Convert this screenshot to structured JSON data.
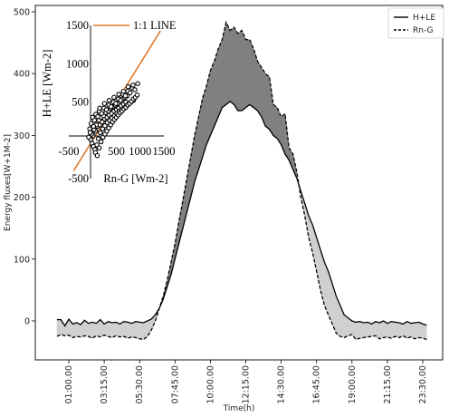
{
  "chart_data": [
    {
      "type": "line",
      "title": "",
      "xlabel": "Time(h)",
      "ylabel": "Energy fluxes[W+1M-2]",
      "ylim": [
        -60,
        500
      ],
      "yticks": [
        0,
        100,
        200,
        300,
        400,
        500
      ],
      "xlim": [
        0,
        24
      ],
      "xticks": [
        {
          "label": "01:00.00",
          "hours": 1.0
        },
        {
          "label": "03:15.00",
          "hours": 3.25
        },
        {
          "label": "05:30.00",
          "hours": 5.5
        },
        {
          "label": "07:45.00",
          "hours": 7.75
        },
        {
          "label": "10:00.00",
          "hours": 10.0
        },
        {
          "label": "12:15.00",
          "hours": 12.25
        },
        {
          "label": "14:30.00",
          "hours": 14.5
        },
        {
          "label": "16:45.00",
          "hours": 16.75
        },
        {
          "label": "19:00.00",
          "hours": 19.0
        },
        {
          "label": "21:15.00",
          "hours": 21.25
        },
        {
          "label": "23:30.00",
          "hours": 23.5
        }
      ],
      "legend_position": "top-right",
      "fill_colors": {
        "positive": "#808080",
        "negative": "#d0d0d0"
      },
      "series": [
        {
          "name": "H+LE",
          "style": "solid",
          "x": [
            0.25,
            0.5,
            0.75,
            1.0,
            1.25,
            1.5,
            1.75,
            2.0,
            2.25,
            2.5,
            2.75,
            3.0,
            3.25,
            3.5,
            3.75,
            4.0,
            4.25,
            4.5,
            4.75,
            5.0,
            5.25,
            5.5,
            5.75,
            6.0,
            6.25,
            6.5,
            6.75,
            7.0,
            7.25,
            7.5,
            7.75,
            8.0,
            8.25,
            8.5,
            8.75,
            9.0,
            9.25,
            9.5,
            9.75,
            10.0,
            10.25,
            10.5,
            10.75,
            11.0,
            11.25,
            11.5,
            11.75,
            12.0,
            12.25,
            12.5,
            12.75,
            13.0,
            13.25,
            13.5,
            13.75,
            14.0,
            14.25,
            14.5,
            14.75,
            15.0,
            15.25,
            15.5,
            15.75,
            16.0,
            16.25,
            16.5,
            16.75,
            17.0,
            17.25,
            17.5,
            17.75,
            18.0,
            18.25,
            18.5,
            18.75,
            19.0,
            19.25,
            19.5,
            19.75,
            20.0,
            20.25,
            20.5,
            20.75,
            21.0,
            21.25,
            21.5,
            21.75,
            22.0,
            22.25,
            22.5,
            22.75,
            23.0,
            23.25,
            23.5,
            23.75
          ],
          "y": [
            2,
            2,
            -8,
            3,
            -5,
            -3,
            -6,
            1,
            -4,
            -2,
            -4,
            2,
            -5,
            -1,
            -3,
            -2,
            -5,
            -1,
            -2,
            -4,
            -1,
            -2,
            -3,
            0,
            3,
            10,
            20,
            35,
            55,
            75,
            100,
            125,
            150,
            175,
            200,
            225,
            245,
            265,
            285,
            300,
            315,
            330,
            345,
            350,
            355,
            350,
            340,
            340,
            345,
            350,
            345,
            340,
            330,
            315,
            310,
            300,
            295,
            285,
            270,
            260,
            245,
            230,
            210,
            190,
            170,
            155,
            135,
            115,
            95,
            80,
            60,
            40,
            25,
            10,
            5,
            0,
            -2,
            -1,
            -3,
            -2,
            -5,
            -1,
            -3,
            0,
            -4,
            -1,
            -2,
            -3,
            -5,
            -1,
            -4,
            -3,
            -2,
            -5,
            -7
          ]
        },
        {
          "name": "Rn-G",
          "style": "dashed",
          "x": [
            0.25,
            0.5,
            0.75,
            1.0,
            1.25,
            1.5,
            1.75,
            2.0,
            2.25,
            2.5,
            2.75,
            3.0,
            3.25,
            3.5,
            3.75,
            4.0,
            4.25,
            4.5,
            4.75,
            5.0,
            5.25,
            5.5,
            5.75,
            6.0,
            6.25,
            6.5,
            6.75,
            7.0,
            7.25,
            7.5,
            7.75,
            8.0,
            8.25,
            8.5,
            8.75,
            9.0,
            9.25,
            9.5,
            9.75,
            10.0,
            10.25,
            10.5,
            10.75,
            11.0,
            11.25,
            11.5,
            11.75,
            12.0,
            12.25,
            12.5,
            12.75,
            13.0,
            13.25,
            13.5,
            13.75,
            14.0,
            14.25,
            14.5,
            14.75,
            15.0,
            15.25,
            15.5,
            15.75,
            16.0,
            16.25,
            16.5,
            16.75,
            17.0,
            17.25,
            17.5,
            17.75,
            18.0,
            18.25,
            18.5,
            18.75,
            19.0,
            19.25,
            19.5,
            19.75,
            20.0,
            20.25,
            20.5,
            20.75,
            21.0,
            21.25,
            21.5,
            21.75,
            22.0,
            22.25,
            22.5,
            22.75,
            23.0,
            23.25,
            23.5,
            23.75
          ],
          "y": [
            -25,
            -22,
            -24,
            -23,
            -27,
            -25,
            -26,
            -24,
            -25,
            -28,
            -24,
            -26,
            -23,
            -25,
            -27,
            -24,
            -26,
            -25,
            -28,
            -26,
            -27,
            -29,
            -30,
            -25,
            -15,
            0,
            20,
            40,
            65,
            95,
            125,
            160,
            195,
            230,
            265,
            300,
            330,
            360,
            380,
            405,
            420,
            440,
            455,
            483,
            470,
            475,
            465,
            470,
            455,
            455,
            440,
            420,
            410,
            400,
            395,
            350,
            345,
            330,
            335,
            280,
            270,
            240,
            200,
            170,
            135,
            110,
            80,
            50,
            25,
            10,
            -5,
            -20,
            -25,
            -27,
            -24,
            -22,
            -30,
            -28,
            -27,
            -26,
            -25,
            -24,
            -29,
            -27,
            -26,
            -28,
            -25,
            -27,
            -24,
            -28,
            -26,
            -29,
            -27,
            -28,
            -30
          ]
        }
      ]
    },
    {
      "type": "scatter",
      "title": "",
      "xlabel": "Rn-G [Wm-2]",
      "ylabel": "H+LE [Wm-2]",
      "xlim": [
        -500,
        1500
      ],
      "ylim": [
        -500,
        1500
      ],
      "xtick_labels": [
        "-500",
        "500",
        "1000",
        "1500"
      ],
      "ytick_labels": [
        "-500",
        "500",
        "1000",
        "1500"
      ],
      "xtick_values": [
        -500,
        500,
        1000,
        1500
      ],
      "ytick_values": [
        -500,
        500,
        1000,
        1500
      ],
      "line_label": "1:1 LINE",
      "line_color": "#e07b2f",
      "marker": "open-circle",
      "points": [
        [
          -40,
          10
        ],
        [
          10,
          60
        ],
        [
          60,
          120
        ],
        [
          100,
          180
        ],
        [
          150,
          200
        ],
        [
          200,
          240
        ],
        [
          250,
          280
        ],
        [
          300,
          300
        ],
        [
          350,
          330
        ],
        [
          400,
          350
        ],
        [
          450,
          380
        ],
        [
          500,
          400
        ],
        [
          550,
          420
        ],
        [
          600,
          450
        ],
        [
          650,
          470
        ],
        [
          700,
          500
        ],
        [
          -20,
          80
        ],
        [
          30,
          140
        ],
        [
          80,
          200
        ],
        [
          130,
          260
        ],
        [
          180,
          300
        ],
        [
          230,
          320
        ],
        [
          280,
          360
        ],
        [
          330,
          380
        ],
        [
          380,
          420
        ],
        [
          430,
          440
        ],
        [
          480,
          460
        ],
        [
          530,
          480
        ],
        [
          580,
          520
        ],
        [
          630,
          540
        ],
        [
          680,
          560
        ],
        [
          730,
          580
        ],
        [
          -10,
          -40
        ],
        [
          20,
          -80
        ],
        [
          50,
          -120
        ],
        [
          90,
          -60
        ],
        [
          120,
          20
        ],
        [
          160,
          100
        ],
        [
          210,
          150
        ],
        [
          260,
          190
        ],
        [
          310,
          230
        ],
        [
          360,
          260
        ],
        [
          410,
          290
        ],
        [
          460,
          320
        ],
        [
          510,
          350
        ],
        [
          560,
          380
        ],
        [
          610,
          400
        ],
        [
          660,
          420
        ],
        [
          710,
          450
        ],
        [
          760,
          480
        ],
        [
          810,
          500
        ],
        [
          860,
          520
        ],
        [
          -60,
          150
        ],
        [
          -30,
          220
        ],
        [
          0,
          300
        ],
        [
          40,
          260
        ],
        [
          70,
          340
        ],
        [
          110,
          310
        ],
        [
          140,
          380
        ],
        [
          190,
          350
        ],
        [
          240,
          420
        ],
        [
          290,
          400
        ],
        [
          340,
          460
        ],
        [
          390,
          440
        ],
        [
          440,
          500
        ],
        [
          490,
          480
        ],
        [
          540,
          540
        ],
        [
          590,
          520
        ],
        [
          640,
          600
        ],
        [
          690,
          580
        ],
        [
          740,
          640
        ],
        [
          790,
          620
        ],
        [
          840,
          680
        ],
        [
          890,
          660
        ],
        [
          60,
          -160
        ],
        [
          100,
          -200
        ],
        [
          140,
          -100
        ],
        [
          180,
          -20
        ],
        [
          220,
          40
        ],
        [
          260,
          80
        ],
        [
          300,
          120
        ],
        [
          340,
          160
        ],
        [
          380,
          200
        ],
        [
          420,
          240
        ],
        [
          460,
          270
        ],
        [
          500,
          300
        ],
        [
          540,
          330
        ],
        [
          580,
          360
        ],
        [
          620,
          380
        ],
        [
          660,
          410
        ],
        [
          700,
          430
        ],
        [
          740,
          460
        ],
        [
          780,
          480
        ],
        [
          820,
          510
        ],
        [
          860,
          540
        ],
        [
          900,
          560
        ],
        [
          940,
          590
        ],
        [
          -80,
          40
        ],
        [
          -50,
          100
        ],
        [
          20,
          180
        ],
        [
          150,
          420
        ],
        [
          250,
          480
        ],
        [
          350,
          520
        ],
        [
          450,
          560
        ],
        [
          550,
          600
        ],
        [
          650,
          640
        ],
        [
          750,
          700
        ],
        [
          850,
          720
        ],
        [
          950,
          740
        ]
      ]
    }
  ]
}
